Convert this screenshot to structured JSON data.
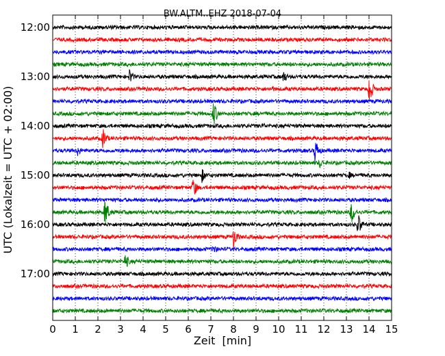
{
  "chart_data": {
    "type": "line",
    "title": "BW.ALTM..EHZ 2018-07-04",
    "xlabel": "Zeit  [min]",
    "ylabel": "UTC (Lokalzeit = UTC + 02:00)",
    "xlim": [
      0,
      15
    ],
    "x_ticks": [
      "0",
      "1",
      "2",
      "3",
      "4",
      "5",
      "6",
      "7",
      "8",
      "9",
      "10",
      "11",
      "12",
      "13",
      "14",
      "15"
    ],
    "y_ticks": [
      "12:00",
      "13:00",
      "14:00",
      "15:00",
      "16:00",
      "17:00"
    ],
    "trace_interval_min": 15,
    "grid": "vertical dotted",
    "trace_colors": [
      "#000000",
      "#ff0000",
      "#0000ff",
      "#008000"
    ],
    "traces": [
      {
        "start": "12:00",
        "events": []
      },
      {
        "start": "12:15",
        "events": []
      },
      {
        "start": "12:30",
        "events": []
      },
      {
        "start": "12:45",
        "events": []
      },
      {
        "start": "13:00",
        "events": [
          {
            "t": 3.4,
            "amp": 13
          },
          {
            "t": 10.2,
            "amp": 12
          }
        ]
      },
      {
        "start": "13:15",
        "events": [
          {
            "t": 9.7,
            "amp": 6
          },
          {
            "t": 14.0,
            "amp": 24
          }
        ]
      },
      {
        "start": "13:30",
        "events": []
      },
      {
        "start": "13:45",
        "events": [
          {
            "t": 7.1,
            "amp": 22
          }
        ]
      },
      {
        "start": "14:00",
        "events": [
          {
            "t": 9.3,
            "amp": 6
          }
        ]
      },
      {
        "start": "14:15",
        "events": [
          {
            "t": 2.2,
            "amp": 18
          }
        ]
      },
      {
        "start": "14:30",
        "events": [
          {
            "t": 1.1,
            "amp": 10
          },
          {
            "t": 11.6,
            "amp": 20
          }
        ]
      },
      {
        "start": "14:45",
        "events": [
          {
            "t": 11.8,
            "amp": 10
          }
        ]
      },
      {
        "start": "15:00",
        "events": [
          {
            "t": 6.6,
            "amp": 12
          },
          {
            "t": 13.1,
            "amp": 7
          }
        ]
      },
      {
        "start": "15:15",
        "events": [
          {
            "t": 6.2,
            "amp": 18
          }
        ]
      },
      {
        "start": "15:30",
        "events": [
          {
            "t": 4.6,
            "amp": 6
          }
        ]
      },
      {
        "start": "15:45",
        "events": [
          {
            "t": 2.3,
            "amp": 24
          },
          {
            "t": 13.2,
            "amp": 20
          }
        ]
      },
      {
        "start": "16:00",
        "events": [
          {
            "t": 13.5,
            "amp": 20
          }
        ]
      },
      {
        "start": "16:15",
        "events": [
          {
            "t": 8.0,
            "amp": 18
          }
        ]
      },
      {
        "start": "16:30",
        "events": [
          {
            "t": 7.1,
            "amp": 10
          }
        ]
      },
      {
        "start": "16:45",
        "events": [
          {
            "t": 3.2,
            "amp": 14
          }
        ]
      },
      {
        "start": "17:00",
        "events": []
      },
      {
        "start": "17:15",
        "events": []
      },
      {
        "start": "17:30",
        "events": []
      },
      {
        "start": "17:45",
        "events": []
      }
    ]
  }
}
